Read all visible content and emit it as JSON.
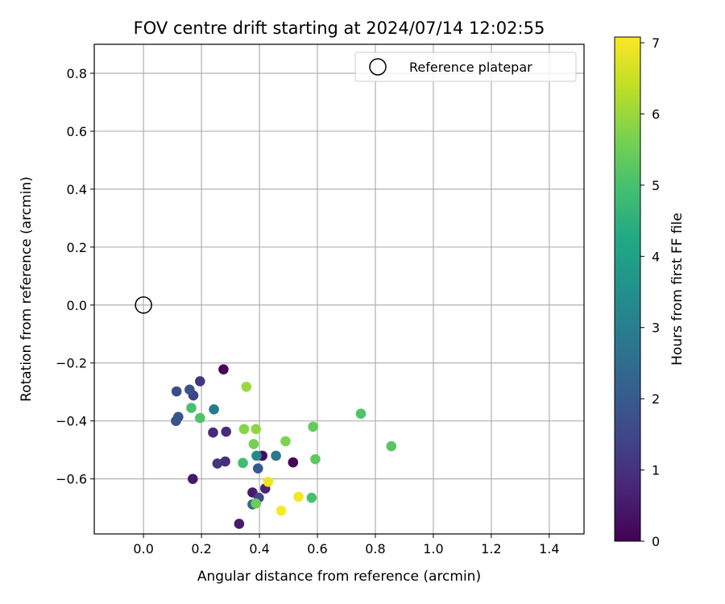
{
  "chart_data": {
    "type": "scatter",
    "title": "FOV centre drift starting at 2024/07/14 12:02:55",
    "xlabel": "Angular distance from reference (arcmin)",
    "ylabel": "Rotation from reference (arcmin)",
    "xlim": [
      -0.17,
      1.52
    ],
    "ylim": [
      -0.79,
      0.9
    ],
    "grid": true,
    "xticks": [
      0.0,
      0.2,
      0.4,
      0.6,
      0.8,
      1.0,
      1.2,
      1.4
    ],
    "xtick_labels": [
      "0.0",
      "0.2",
      "0.4",
      "0.6",
      "0.8",
      "1.0",
      "1.2",
      "1.4"
    ],
    "yticks": [
      0.8,
      0.6,
      0.4,
      0.2,
      0.0,
      -0.2,
      -0.4,
      -0.6
    ],
    "ytick_labels": [
      "0.8",
      "0.6",
      "0.4",
      "0.2",
      "0.0",
      "−0.2",
      "−0.4",
      "−0.6"
    ],
    "legend": {
      "placement": "top-right",
      "entries": [
        "Reference platepar"
      ]
    },
    "reference_point": {
      "x": 0.0,
      "y": 0.0,
      "marker": "open-circle"
    },
    "colorbar": {
      "label": "Hours from first FF file",
      "colormap": "viridis",
      "range": [
        0,
        7.08
      ],
      "ticks": [
        0,
        1,
        2,
        3,
        4,
        5,
        6,
        7
      ],
      "tick_labels": [
        "0",
        "1",
        "2",
        "3",
        "4",
        "5",
        "6",
        "7"
      ]
    },
    "points": [
      {
        "x": 0.276,
        "y": -0.222,
        "h": 0.1
      },
      {
        "x": 0.516,
        "y": -0.543,
        "h": 0.1
      },
      {
        "x": 0.41,
        "y": -0.52,
        "h": 0.25
      },
      {
        "x": 0.17,
        "y": -0.6,
        "h": 0.45
      },
      {
        "x": 0.33,
        "y": -0.755,
        "h": 0.5
      },
      {
        "x": 0.376,
        "y": -0.647,
        "h": 0.55
      },
      {
        "x": 0.42,
        "y": -0.633,
        "h": 0.7
      },
      {
        "x": 0.24,
        "y": -0.44,
        "h": 0.85
      },
      {
        "x": 0.285,
        "y": -0.437,
        "h": 0.9
      },
      {
        "x": 0.282,
        "y": -0.54,
        "h": 0.95
      },
      {
        "x": 0.255,
        "y": -0.547,
        "h": 1.05
      },
      {
        "x": 0.195,
        "y": -0.263,
        "h": 1.1
      },
      {
        "x": 0.172,
        "y": -0.312,
        "h": 1.4
      },
      {
        "x": 0.398,
        "y": -0.665,
        "h": 1.5
      },
      {
        "x": 0.114,
        "y": -0.298,
        "h": 1.6
      },
      {
        "x": 0.159,
        "y": -0.292,
        "h": 1.75
      },
      {
        "x": 0.112,
        "y": -0.4,
        "h": 1.8
      },
      {
        "x": 0.12,
        "y": -0.386,
        "h": 1.85
      },
      {
        "x": 0.395,
        "y": -0.564,
        "h": 2.05
      },
      {
        "x": 0.376,
        "y": -0.688,
        "h": 2.4
      },
      {
        "x": 0.457,
        "y": -0.52,
        "h": 2.8
      },
      {
        "x": 0.243,
        "y": -0.36,
        "h": 2.9
      },
      {
        "x": 0.39,
        "y": -0.52,
        "h": 3.3
      },
      {
        "x": 0.343,
        "y": -0.545,
        "h": 4.9
      },
      {
        "x": 0.165,
        "y": -0.355,
        "h": 5.0
      },
      {
        "x": 0.58,
        "y": -0.665,
        "h": 5.0
      },
      {
        "x": 0.195,
        "y": -0.39,
        "h": 5.1
      },
      {
        "x": 0.75,
        "y": -0.375,
        "h": 5.1
      },
      {
        "x": 0.855,
        "y": -0.487,
        "h": 5.2
      },
      {
        "x": 0.593,
        "y": -0.532,
        "h": 5.3
      },
      {
        "x": 0.585,
        "y": -0.42,
        "h": 5.4
      },
      {
        "x": 0.388,
        "y": -0.685,
        "h": 5.5
      },
      {
        "x": 0.38,
        "y": -0.48,
        "h": 5.6
      },
      {
        "x": 0.49,
        "y": -0.47,
        "h": 5.7
      },
      {
        "x": 0.347,
        "y": -0.428,
        "h": 5.8
      },
      {
        "x": 0.388,
        "y": -0.428,
        "h": 5.9
      },
      {
        "x": 0.355,
        "y": -0.282,
        "h": 6.0
      },
      {
        "x": 0.43,
        "y": -0.61,
        "h": 6.9
      },
      {
        "x": 0.535,
        "y": -0.662,
        "h": 7.0
      },
      {
        "x": 0.475,
        "y": -0.71,
        "h": 7.05
      }
    ]
  }
}
